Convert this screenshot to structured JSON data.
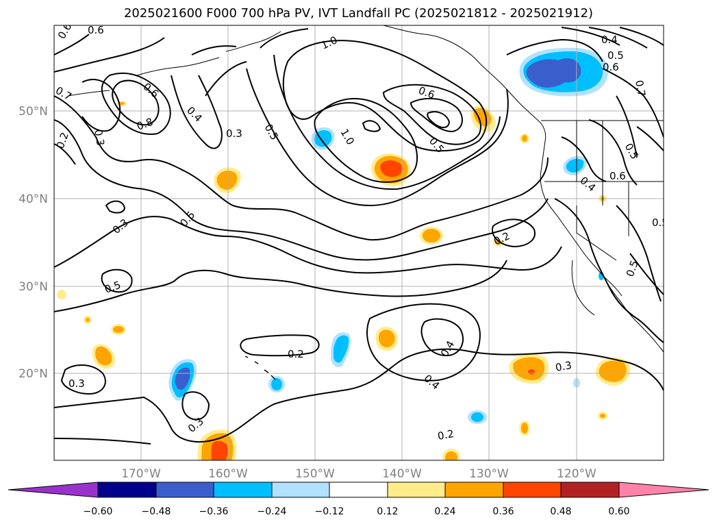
{
  "title": "2025021600 F000 700 hPa PV, IVT Landfall PC (2025021812 - 2025021912)",
  "map": {
    "lon_labels": [
      "170°W",
      "160°W",
      "150°W",
      "140°W",
      "130°W",
      "120°W"
    ],
    "lat_labels": [
      "50°N",
      "40°N",
      "30°N",
      "20°N"
    ],
    "contour_labels": [
      "0.6",
      "0.6",
      "0.7",
      "1.0",
      "0.4",
      "0.5",
      "0.6",
      "0.7",
      "0.6",
      "0.8",
      "0.2",
      "0.3",
      "0.4",
      "0.3",
      "0.5",
      "0.6",
      "1.0",
      "0.5",
      "0.5",
      "0.4",
      "0.6",
      "0.3",
      "0.5",
      "0.2",
      "0.5",
      "0.3",
      "0.5",
      "0.2",
      "0.4",
      "0.4",
      "0.3",
      "0.2",
      "0.3",
      "0.3",
      "0.3",
      "0.6",
      "0.7"
    ]
  },
  "colorbar": {
    "tick_labels": [
      "−0.60",
      "−0.48",
      "−0.36",
      "−0.24",
      "−0.12",
      "0.12",
      "0.24",
      "0.36",
      "0.48",
      "0.60"
    ],
    "colors": [
      "#9932cc",
      "#00008b",
      "#3a5fcd",
      "#00bfff",
      "#b0e2ff",
      "#ffffff",
      "#ffec8b",
      "#ffa500",
      "#ff4500",
      "#b22222",
      "#ff82ab"
    ]
  },
  "colors": {
    "neg_strong": "#3a5fcd",
    "neg_mid": "#00bfff",
    "neg_weak": "#b0e2ff",
    "pos_weak": "#ffec8b",
    "pos_mid": "#ffa500",
    "pos_strong": "#ff4500"
  }
}
